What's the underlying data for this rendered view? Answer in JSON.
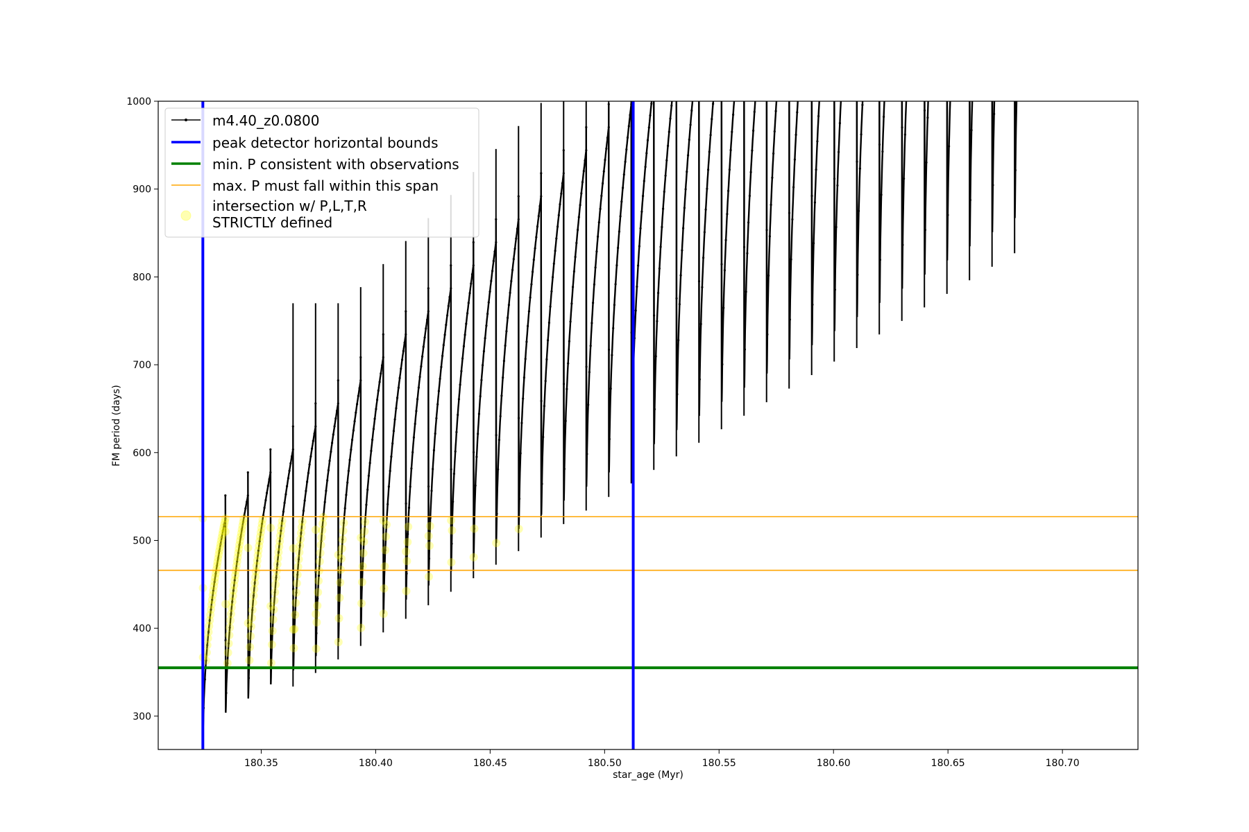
{
  "chart_data": {
    "type": "line",
    "xlabel": "star_age (Myr)",
    "ylabel": "FM period (days)",
    "xlim": [
      180.305,
      180.733
    ],
    "ylim": [
      262,
      1000
    ],
    "x_ticks": [
      180.35,
      180.4,
      180.45,
      180.5,
      180.55,
      180.6,
      180.65,
      180.7
    ],
    "x_tick_labels": [
      "180.35",
      "180.40",
      "180.45",
      "180.50",
      "180.55",
      "180.60",
      "180.65",
      "180.70"
    ],
    "y_ticks": [
      300,
      400,
      500,
      600,
      700,
      800,
      900,
      1000
    ],
    "y_tick_labels": [
      "300",
      "400",
      "500",
      "600",
      "700",
      "800",
      "900",
      "1000"
    ],
    "grid": false,
    "legend_position": "top-left",
    "series": [
      {
        "name": "m4.40_z0.0800",
        "kind": "line-marker",
        "color": "#000000",
        "pulse_period_myr": 0.00985,
        "first_pulse_start_myr": 180.3245,
        "last_pulse_start_myr": 180.679,
        "min_period_start_days": 272,
        "min_period_slope_days_per_myr": 1565,
        "peak_period_start_days": 525,
        "peak_period_slope_days_per_myr": 2660,
        "vertical_spike_start_myr": 180.362,
        "vertical_spike_base_days": 690
      },
      {
        "name": "peak detector horizontal bounds",
        "kind": "vline",
        "color": "#0000ff",
        "x": [
          180.3245,
          180.5125
        ]
      },
      {
        "name": "min. P consistent with observations",
        "kind": "hline",
        "color": "#008000",
        "y": 355
      },
      {
        "name": "max. P must fall within this span",
        "kind": "hline",
        "color": "#ffa500",
        "y": [
          466,
          527
        ]
      },
      {
        "name": "intersection w/ P,L,T,R\nSTRICTLY defined",
        "kind": "scatter",
        "color": "#ffff00"
      }
    ],
    "legend": {
      "entries": [
        {
          "label": "m4.40_z0.0800",
          "style": "line-marker",
          "color": "#000000"
        },
        {
          "label": "peak detector horizontal bounds",
          "style": "line",
          "color": "#0000ff"
        },
        {
          "label": "min. P consistent with observations",
          "style": "line",
          "color": "#008000"
        },
        {
          "label": "max. P must fall within this span",
          "style": "thin-line",
          "color": "#ffa500"
        },
        {
          "label_line1": "intersection w/ P,L,T,R",
          "label_line2": "STRICTLY defined",
          "style": "circle",
          "color": "#ffff00"
        }
      ]
    }
  }
}
